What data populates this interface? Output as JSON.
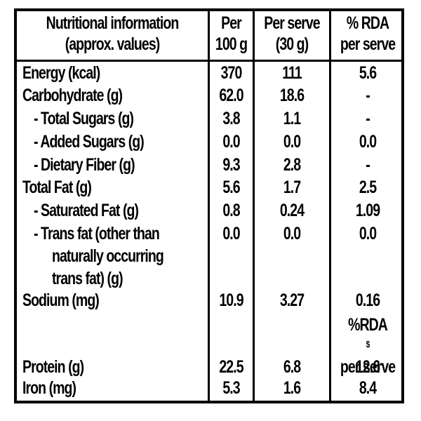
{
  "header": {
    "col1_line1": "Nutritional information",
    "col1_line2": "(approx. values)",
    "col2_line1": "Per",
    "col2_line2": "100 g",
    "col3_line1": "Per serve",
    "col3_line2": "(30 g)",
    "col4_line1": "% RDA",
    "col4_line2": "per serve"
  },
  "rows": [
    {
      "label": "Energy (kcal)",
      "per100g": "370",
      "perServe": "111",
      "rda": "5.6"
    },
    {
      "label": "Carbohydrate (g)",
      "per100g": "62.0",
      "perServe": "18.6",
      "rda": "-"
    },
    {
      "label": " - Total Sugars (g)",
      "per100g": "3.8",
      "perServe": "1.1",
      "rda": "-"
    },
    {
      "label": " - Added Sugars (g)",
      "per100g": "0.0",
      "perServe": "0.0",
      "rda": "0.0"
    },
    {
      "label": " - Dietary Fiber (g)",
      "per100g": "9.3",
      "perServe": "2.8",
      "rda": "-"
    },
    {
      "label": "Total Fat (g)",
      "per100g": "5.6",
      "perServe": "1.7",
      "rda": "2.5"
    },
    {
      "label": " - Saturated Fat (g)",
      "per100g": "0.8",
      "perServe": "0.24",
      "rda": "1.09"
    },
    {
      "label": " - Trans fat (other than",
      "label_line2": "naturally occurring",
      "label_line3": "trans fat) (g)",
      "per100g": "0.0",
      "perServe": "0.0",
      "rda": "0.0"
    },
    {
      "label": "Sodium (mg)",
      "per100g": "10.9",
      "perServe": "3.27",
      "rda": "0.16"
    },
    {
      "label": "Protein (g)",
      "per100g": "22.5",
      "perServe": "6.8",
      "rda": "12.6"
    },
    {
      "label": "Iron (mg)",
      "per100g": "5.3",
      "perServe": "1.6",
      "rda": "8.4"
    }
  ],
  "subheader": {
    "line1": "%RDA",
    "superscript": "$",
    "line2": "per serve"
  }
}
